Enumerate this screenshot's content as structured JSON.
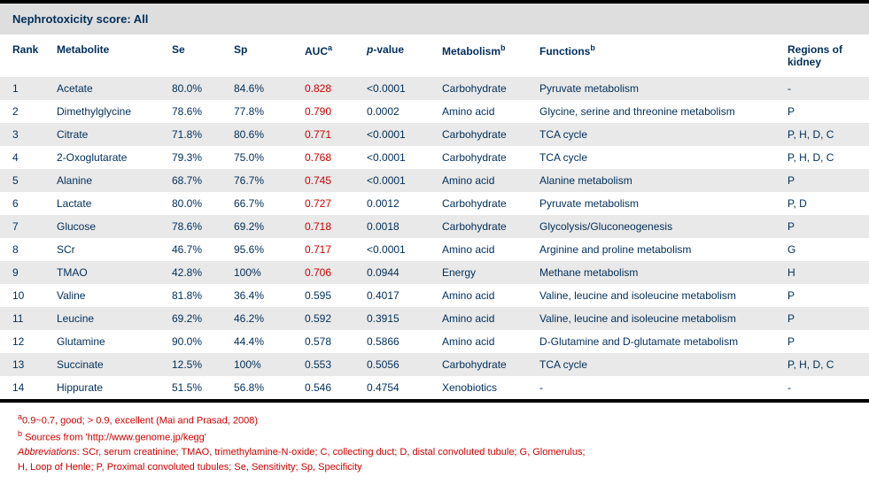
{
  "title": "Nephrotoxicity score: All",
  "columns": {
    "rank": "Rank",
    "metabolite": "Metabolite",
    "se": "Se",
    "sp": "Sp",
    "auc": "AUC",
    "auc_sup": "a",
    "pvalue_prefix": "p",
    "pvalue_suffix": "-value",
    "metabolism": "Metabolism",
    "metabolism_sup": "b",
    "functions": "Functions",
    "functions_sup": "b",
    "regions_l1": "Regions of",
    "regions_l2": "kidney"
  },
  "auc_highlight_threshold": 0.7,
  "rows": [
    {
      "rank": "1",
      "metabolite": "Acetate",
      "se": "80.0%",
      "sp": "84.6%",
      "auc": "0.828",
      "p": "<0.0001",
      "mcat": "Carbohydrate",
      "func": "Pyruvate metabolism",
      "reg": "-"
    },
    {
      "rank": "2",
      "metabolite": "Dimethylglycine",
      "se": "78.6%",
      "sp": "77.8%",
      "auc": "0.790",
      "p": "0.0002",
      "mcat": "Amino acid",
      "func": "Glycine, serine and threonine metabolism",
      "reg": "P"
    },
    {
      "rank": "3",
      "metabolite": "Citrate",
      "se": "71.8%",
      "sp": "80.6%",
      "auc": "0.771",
      "p": "<0.0001",
      "mcat": "Carbohydrate",
      "func": "TCA cycle",
      "reg": "P, H, D, C"
    },
    {
      "rank": "4",
      "metabolite": "2-Oxoglutarate",
      "se": "79.3%",
      "sp": "75.0%",
      "auc": "0.768",
      "p": "<0.0001",
      "mcat": "Carbohydrate",
      "func": "TCA cycle",
      "reg": "P, H, D, C"
    },
    {
      "rank": "5",
      "metabolite": "Alanine",
      "se": "68.7%",
      "sp": "76.7%",
      "auc": "0.745",
      "p": "<0.0001",
      "mcat": "Amino acid",
      "func": "Alanine metabolism",
      "reg": "P"
    },
    {
      "rank": "6",
      "metabolite": "Lactate",
      "se": "80.0%",
      "sp": "66.7%",
      "auc": "0.727",
      "p": "0.0012",
      "mcat": "Carbohydrate",
      "func": "Pyruvate metabolism",
      "reg": "P, D"
    },
    {
      "rank": "7",
      "metabolite": "Glucose",
      "se": "78.6%",
      "sp": "69.2%",
      "auc": "0.718",
      "p": "0.0018",
      "mcat": "Carbohydrate",
      "func": "Glycolysis/Gluconeogenesis",
      "reg": "P"
    },
    {
      "rank": "8",
      "metabolite": "SCr",
      "se": "46.7%",
      "sp": "95.6%",
      "auc": "0.717",
      "p": "<0.0001",
      "mcat": "Amino acid",
      "func": "Arginine and proline metabolism",
      "reg": "G"
    },
    {
      "rank": "9",
      "metabolite": "TMAO",
      "se": "42.8%",
      "sp": "100%",
      "auc": "0.706",
      "p": "0.0944",
      "mcat": "Energy",
      "func": "Methane metabolism",
      "reg": "H"
    },
    {
      "rank": "10",
      "metabolite": "Valine",
      "se": "81.8%",
      "sp": "36.4%",
      "auc": "0.595",
      "p": "0.4017",
      "mcat": "Amino acid",
      "func": "Valine, leucine and isoleucine metabolism",
      "reg": "P"
    },
    {
      "rank": "11",
      "metabolite": "Leucine",
      "se": "69.2%",
      "sp": "46.2%",
      "auc": "0.592",
      "p": "0.3915",
      "mcat": "Amino acid",
      "func": "Valine, leucine and isoleucine metabolism",
      "reg": "P"
    },
    {
      "rank": "12",
      "metabolite": "Glutamine",
      "se": "90.0%",
      "sp": "44.4%",
      "auc": "0.578",
      "p": "0.5866",
      "mcat": "Amino acid",
      "func": "D-Glutamine and D-glutamate metabolism",
      "reg": "P"
    },
    {
      "rank": "13",
      "metabolite": "Succinate",
      "se": "12.5%",
      "sp": "100%",
      "auc": "0.553",
      "p": "0.5056",
      "mcat": "Carbohydrate",
      "func": "TCA cycle",
      "reg": "P, H, D, C"
    },
    {
      "rank": "14",
      "metabolite": "Hippurate",
      "se": "51.5%",
      "sp": "56.8%",
      "auc": "0.546",
      "p": "0.4754",
      "mcat": "Xenobiotics",
      "func": "-",
      "reg": "-"
    }
  ],
  "footnotes": {
    "a_sup": "a",
    "a_text": "0.9~0.7, good; > 0.9, excellent (Mai and Prasad, 2008)",
    "b_sup": "b",
    "b_text": " Sources from 'http://www.genome.jp/kegg'",
    "abbr_label": "Abbreviations",
    "abbr_text": ": SCr, serum creatinine; TMAO, trimethylamine-N-oxide; C, collecting duct; D, distal convoluted tubule; G, Glomerulus;",
    "abbr_text2": "H, Loop of Henle; P, Proximal convoluted tubules; Se, Sensitivity; Sp, Specificity"
  }
}
